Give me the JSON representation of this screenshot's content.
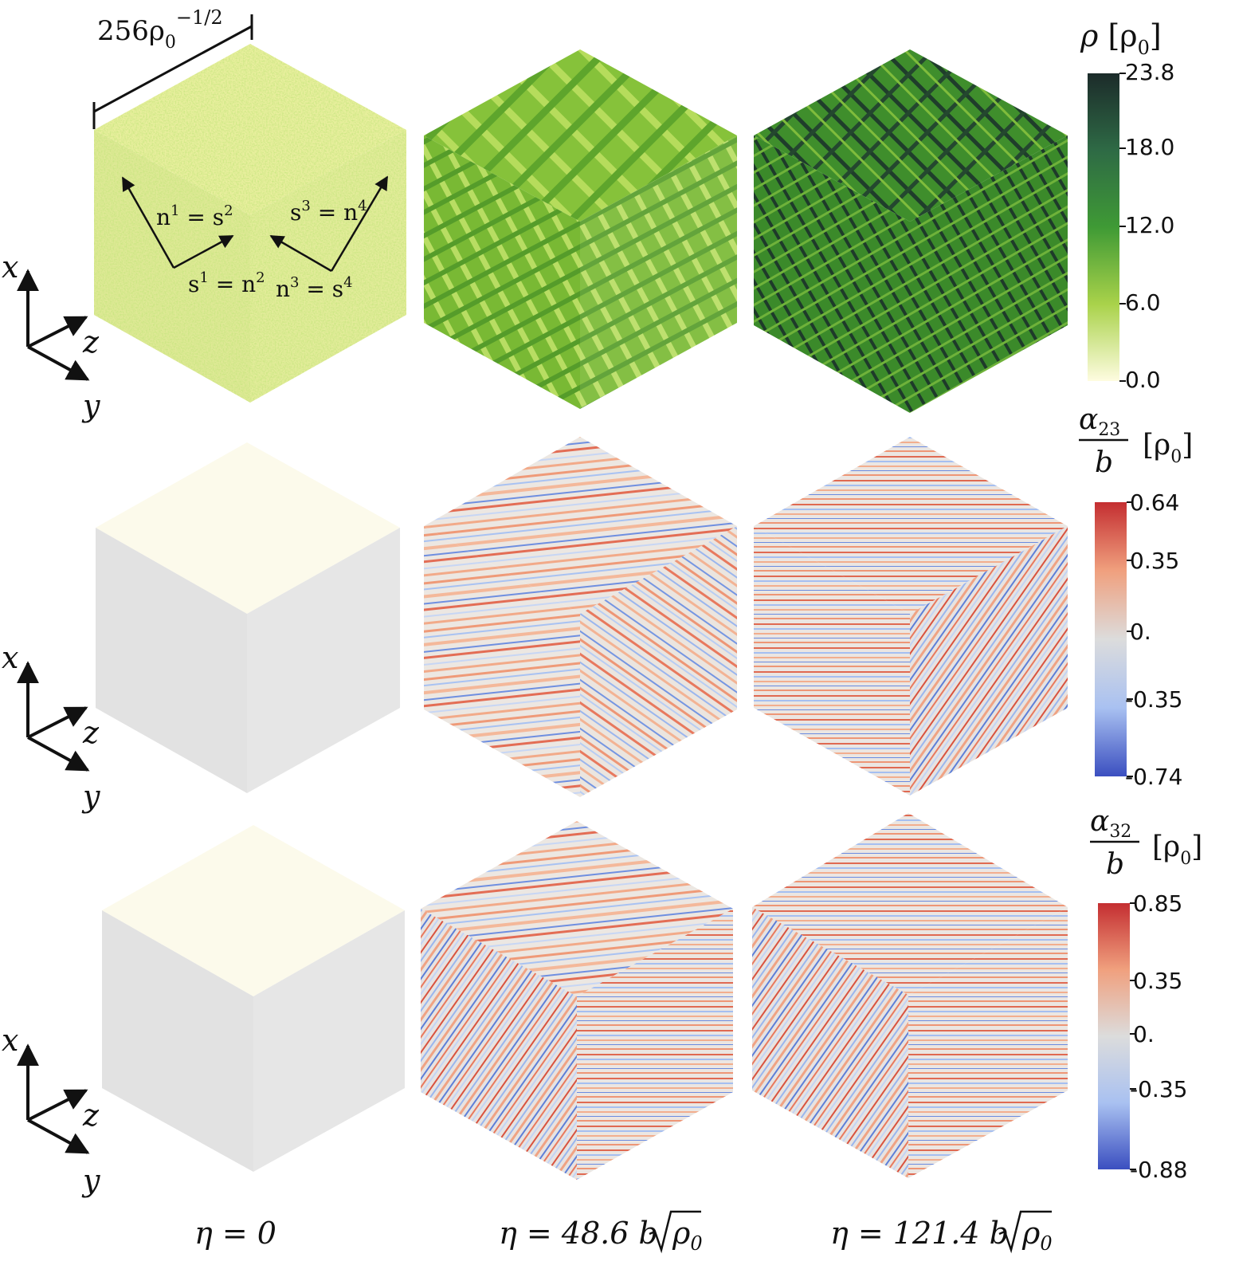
{
  "figure": {
    "scale_bar": {
      "base": "256ρ",
      "sub": "0",
      "sup": "−1/2"
    },
    "axes": {
      "x": "x",
      "y": "y",
      "z": "z"
    },
    "vector_labels": [
      {
        "lhs": "n",
        "lhs_sup": "1",
        "rhs": "s",
        "rhs_sup": "2"
      },
      {
        "lhs": "s",
        "lhs_sup": "3",
        "rhs": "n",
        "rhs_sup": "4"
      },
      {
        "lhs": "s",
        "lhs_sup": "1",
        "rhs": "n",
        "rhs_sup": "2"
      },
      {
        "lhs": "n",
        "lhs_sup": "3",
        "rhs": "s",
        "rhs_sup": "4"
      }
    ],
    "columns": [
      {
        "eta": "η = 0"
      },
      {
        "eta": "η = 48.6 b",
        "root": "ρ",
        "root_sub": "0"
      },
      {
        "eta": "η = 121.4 b",
        "root": "ρ",
        "root_sub": "0"
      }
    ],
    "colorbars": [
      {
        "name": "rho",
        "symbol": "ρ",
        "unit": "[ρ",
        "unit_sub": "0",
        "unit_close": "]",
        "ticks": [
          "23.8",
          "18.0",
          "12.0",
          "6.0",
          "0.0"
        ],
        "stops": [
          "#1c2b2a",
          "#2e6a45",
          "#3f9a35",
          "#a9d24a",
          "#fefce0"
        ]
      },
      {
        "name": "alpha23",
        "num": "α",
        "num_sub": "23",
        "den": "b",
        "unit": "[ρ",
        "unit_sub": "0",
        "unit_close": "]",
        "ticks": [
          "0.64",
          "0.35",
          "0.",
          "-0.35",
          "-0.74"
        ],
        "stops": [
          "#c42e31",
          "#f0a07e",
          "#dcdcdc",
          "#a9c1f1",
          "#3b4fc0"
        ]
      },
      {
        "name": "alpha32",
        "num": "α",
        "num_sub": "32",
        "den": "b",
        "unit": "[ρ",
        "unit_sub": "0",
        "unit_close": "]",
        "ticks": [
          "0.85",
          "0.35",
          "0.",
          "-0.35",
          "-0.88"
        ],
        "stops": [
          "#c42e31",
          "#f0a07e",
          "#dcdcdc",
          "#a9c1f1",
          "#3b4fc0"
        ]
      }
    ]
  }
}
